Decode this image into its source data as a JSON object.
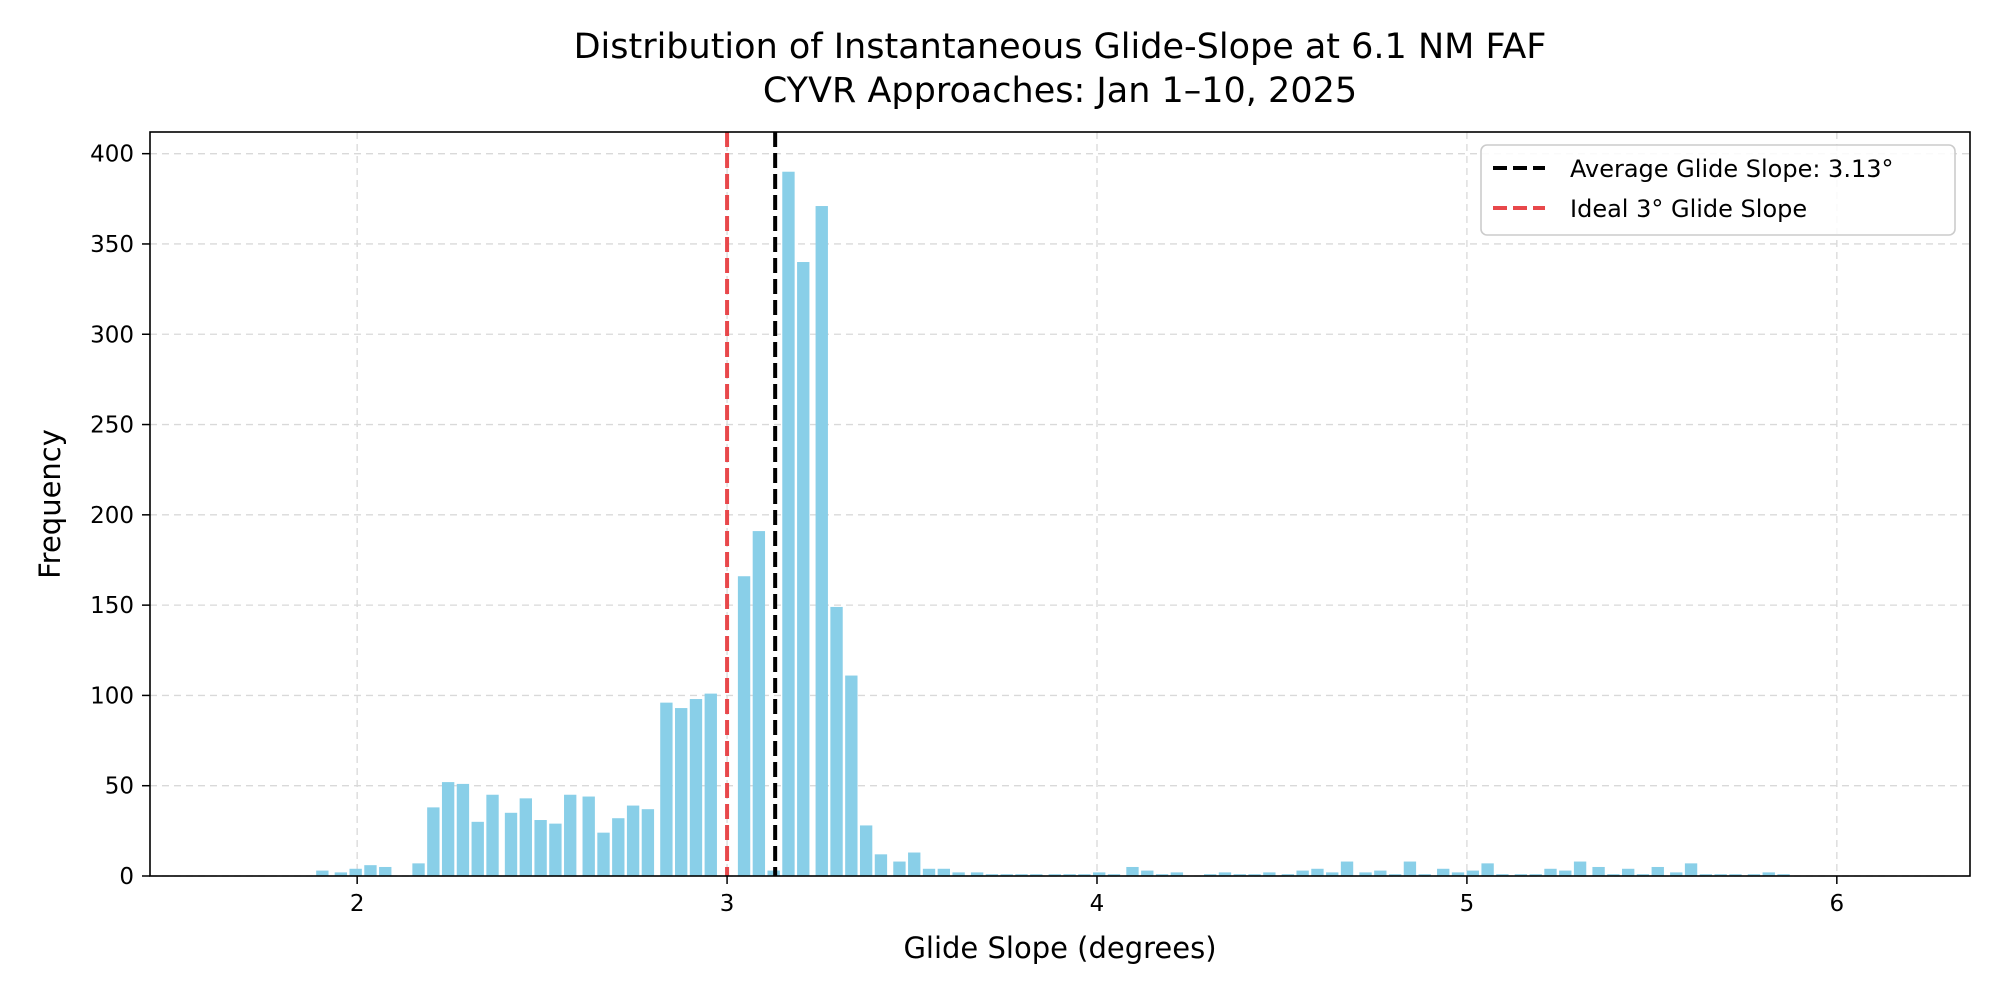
{
  "chart_data": {
    "type": "bar",
    "title": "Distribution of Instantaneous Glide-Slope at 6.1 NM FAF",
    "subtitle": "CYVR Approaches: Jan 1–10, 2025",
    "xlabel": "Glide Slope (degrees)",
    "ylabel": "Frequency",
    "xlim": [
      1.44,
      6.36
    ],
    "ylim": [
      0,
      412
    ],
    "x_ticks": [
      2,
      3,
      4,
      5,
      6
    ],
    "y_ticks": [
      0,
      50,
      100,
      150,
      200,
      250,
      300,
      350,
      400
    ],
    "grid": true,
    "bar_color": "#89CFE8",
    "bin_width": 0.0415,
    "bins": [
      [
        1.83,
        0
      ],
      [
        1.87,
        0
      ],
      [
        1.91,
        3
      ],
      [
        1.96,
        2
      ],
      [
        2.0,
        4
      ],
      [
        2.04,
        6
      ],
      [
        2.08,
        5
      ],
      [
        2.12,
        0
      ],
      [
        2.17,
        7
      ],
      [
        2.21,
        38
      ],
      [
        2.25,
        52
      ],
      [
        2.29,
        51
      ],
      [
        2.33,
        30
      ],
      [
        2.37,
        45
      ],
      [
        2.42,
        35
      ],
      [
        2.46,
        43
      ],
      [
        2.5,
        31
      ],
      [
        2.54,
        29
      ],
      [
        2.58,
        45
      ],
      [
        2.63,
        44
      ],
      [
        2.67,
        24
      ],
      [
        2.71,
        32
      ],
      [
        2.75,
        39
      ],
      [
        2.79,
        37
      ],
      [
        2.84,
        96
      ],
      [
        2.88,
        93
      ],
      [
        2.92,
        98
      ],
      [
        2.96,
        101
      ],
      [
        3.0,
        0
      ],
      [
        3.05,
        166
      ],
      [
        3.09,
        191
      ],
      [
        3.13,
        3
      ],
      [
        3.17,
        390
      ],
      [
        3.21,
        340
      ],
      [
        3.26,
        371
      ],
      [
        3.3,
        149
      ],
      [
        3.34,
        111
      ],
      [
        3.38,
        28
      ],
      [
        3.42,
        12
      ],
      [
        3.47,
        8
      ],
      [
        3.51,
        13
      ],
      [
        3.55,
        4
      ],
      [
        3.59,
        4
      ],
      [
        3.63,
        2
      ],
      [
        3.68,
        2
      ],
      [
        3.72,
        1
      ],
      [
        3.76,
        1
      ],
      [
        3.8,
        1
      ],
      [
        3.84,
        1
      ],
      [
        3.89,
        1
      ],
      [
        3.93,
        1
      ],
      [
        3.97,
        1
      ],
      [
        4.01,
        2
      ],
      [
        4.05,
        1
      ],
      [
        4.1,
        5
      ],
      [
        4.14,
        3
      ],
      [
        4.18,
        1
      ],
      [
        4.22,
        2
      ],
      [
        4.26,
        0
      ],
      [
        4.31,
        1
      ],
      [
        4.35,
        2
      ],
      [
        4.39,
        1
      ],
      [
        4.43,
        1
      ],
      [
        4.47,
        2
      ],
      [
        4.52,
        1
      ],
      [
        4.56,
        3
      ],
      [
        4.6,
        4
      ],
      [
        4.64,
        2
      ],
      [
        4.68,
        8
      ],
      [
        4.73,
        2
      ],
      [
        4.77,
        3
      ],
      [
        4.81,
        1
      ],
      [
        4.85,
        8
      ],
      [
        4.89,
        1
      ],
      [
        4.94,
        4
      ],
      [
        4.98,
        2
      ],
      [
        5.02,
        3
      ],
      [
        5.06,
        7
      ],
      [
        5.1,
        1
      ],
      [
        5.15,
        1
      ],
      [
        5.19,
        1
      ],
      [
        5.23,
        4
      ],
      [
        5.27,
        3
      ],
      [
        5.31,
        8
      ],
      [
        5.36,
        5
      ],
      [
        5.4,
        1
      ],
      [
        5.44,
        4
      ],
      [
        5.48,
        1
      ],
      [
        5.52,
        5
      ],
      [
        5.57,
        2
      ],
      [
        5.61,
        7
      ],
      [
        5.65,
        1
      ],
      [
        5.69,
        1
      ],
      [
        5.73,
        1
      ],
      [
        5.78,
        1
      ],
      [
        5.82,
        2
      ],
      [
        5.86,
        1
      ],
      [
        5.9,
        0
      ],
      [
        5.94,
        0
      ]
    ],
    "reference_lines": [
      {
        "name": "Average Glide Slope: 3.13°",
        "x": 3.13,
        "color": "#000000",
        "style": "dashed"
      },
      {
        "name": "Ideal 3° Glide Slope",
        "x": 3.0,
        "color": "#E8484B",
        "style": "dashed"
      }
    ],
    "legend_position": "top-right"
  }
}
